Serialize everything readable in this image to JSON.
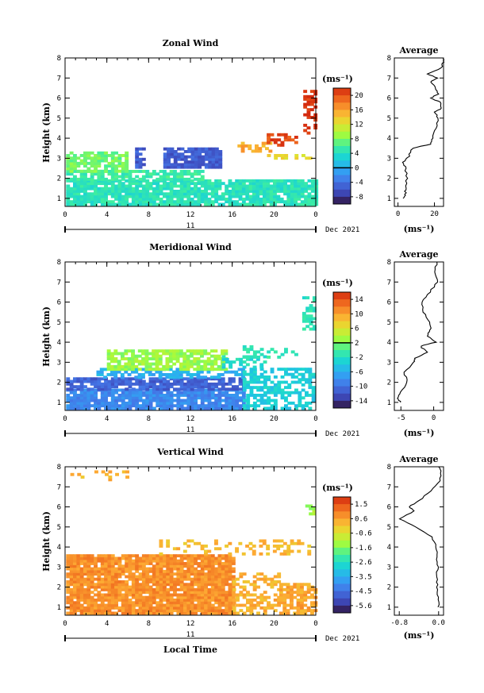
{
  "figure": {
    "date_label": "Dec 2021",
    "day_label": "11",
    "xlabel": "Local Time",
    "ylabel": "Height (km)",
    "unit_label": "(ms⁻¹)",
    "avg_title": "Average"
  },
  "chart_data": [
    {
      "type": "heatmap",
      "title": "Zonal Wind",
      "x_ticks": [
        "0",
        "4",
        "8",
        "12",
        "16",
        "20",
        "0"
      ],
      "y_ticks": [
        "1",
        "2",
        "3",
        "4",
        "5",
        "6",
        "7",
        "8"
      ],
      "xlim": [
        0,
        24
      ],
      "ylim": [
        0.6,
        8
      ],
      "colorbar": {
        "labels": [
          "20",
          "16",
          "12",
          "8",
          "4",
          "0",
          "-4",
          "-8"
        ],
        "vmin": -10,
        "vmax": 22,
        "contour_at": "0"
      },
      "field": {
        "regions": [
          {
            "x0": 0.1,
            "x1": 23.9,
            "y0": 0.65,
            "y1": 1.9,
            "value": 4.5,
            "density": 0.88
          },
          {
            "x0": 0.1,
            "x1": 13.0,
            "y0": 1.9,
            "y1": 2.3,
            "value": 5.5,
            "density": 0.7
          },
          {
            "x0": 0.1,
            "x1": 6.0,
            "y0": 2.3,
            "y1": 3.3,
            "value": 7.5,
            "density": 0.75
          },
          {
            "x0": 6.7,
            "x1": 7.4,
            "y0": 2.5,
            "y1": 3.5,
            "value": -5.5,
            "density": 0.85
          },
          {
            "x0": 9.4,
            "x1": 14.9,
            "y0": 2.5,
            "y1": 3.5,
            "value": -5.5,
            "density": 0.9
          },
          {
            "x0": 16.5,
            "x1": 19.5,
            "y0": 3.3,
            "y1": 3.7,
            "value": 15.5,
            "density": 0.6
          },
          {
            "x0": 19.0,
            "x1": 23.5,
            "y0": 2.95,
            "y1": 3.15,
            "value": 12.5,
            "density": 0.5
          },
          {
            "x0": 19.3,
            "x1": 22.0,
            "y0": 3.6,
            "y1": 4.2,
            "value": 20.5,
            "density": 0.5
          },
          {
            "x0": 22.8,
            "x1": 23.9,
            "y0": 4.2,
            "y1": 6.4,
            "value": 21.5,
            "density": 0.55
          }
        ]
      },
      "average": {
        "x_ticks": [
          "0",
          "20"
        ],
        "xlim": [
          -2,
          25
        ],
        "profile": [
          [
            1,
            3
          ],
          [
            1.2,
            4
          ],
          [
            1.5,
            4
          ],
          [
            2,
            5
          ],
          [
            2.5,
            4
          ],
          [
            2.8,
            3
          ],
          [
            3.1,
            6
          ],
          [
            3.5,
            8
          ],
          [
            3.7,
            18
          ],
          [
            4.0,
            19
          ],
          [
            4.5,
            21
          ],
          [
            5.0,
            22
          ],
          [
            5.3,
            20
          ],
          [
            5.5,
            24
          ],
          [
            5.8,
            23
          ],
          [
            6.0,
            18
          ],
          [
            6.2,
            22
          ],
          [
            6.5,
            21
          ],
          [
            6.8,
            18
          ],
          [
            7.0,
            22
          ],
          [
            7.2,
            16
          ],
          [
            7.5,
            24
          ],
          [
            7.8,
            25
          ],
          [
            8,
            25
          ]
        ]
      }
    },
    {
      "type": "heatmap",
      "title": "Meridional Wind",
      "x_ticks": [
        "0",
        "4",
        "8",
        "12",
        "16",
        "20",
        "0"
      ],
      "y_ticks": [
        "1",
        "2",
        "3",
        "4",
        "5",
        "6",
        "7",
        "8"
      ],
      "xlim": [
        0,
        24
      ],
      "ylim": [
        0.6,
        8
      ],
      "colorbar": {
        "labels": [
          "14",
          "10",
          "6",
          "2",
          "-2",
          "-6",
          "-10",
          "-14"
        ],
        "vmin": -16,
        "vmax": 16,
        "contour_at": "2"
      },
      "field": {
        "regions": [
          {
            "x0": 0.1,
            "x1": 17.0,
            "y0": 0.65,
            "y1": 1.6,
            "value": -8.5,
            "density": 0.9
          },
          {
            "x0": 0.1,
            "x1": 17.0,
            "y0": 1.6,
            "y1": 2.2,
            "value": -11,
            "density": 0.8
          },
          {
            "x0": 3.0,
            "x1": 17.0,
            "y0": 2.2,
            "y1": 2.6,
            "value": -6,
            "density": 0.6
          },
          {
            "x0": 17.0,
            "x1": 23.9,
            "y0": 0.65,
            "y1": 2.6,
            "value": -3.5,
            "density": 0.55
          },
          {
            "x0": 4.0,
            "x1": 15.5,
            "y0": 2.6,
            "y1": 3.6,
            "value": 3,
            "density": 0.75
          },
          {
            "x0": 15.0,
            "x1": 19.0,
            "y0": 2.7,
            "y1": 3.3,
            "value": -2.5,
            "density": 0.5
          },
          {
            "x0": 17.0,
            "x1": 22.0,
            "y0": 3.2,
            "y1": 3.8,
            "value": -1,
            "density": 0.4
          },
          {
            "x0": 22.7,
            "x1": 23.9,
            "y0": 4.6,
            "y1": 6.2,
            "value": -1.5,
            "density": 0.45
          }
        ]
      },
      "average": {
        "x_ticks": [
          "-5",
          "0"
        ],
        "xlim": [
          -6,
          1.5
        ],
        "profile": [
          [
            1,
            -5
          ],
          [
            1.2,
            -5.5
          ],
          [
            1.5,
            -5
          ],
          [
            2,
            -4
          ],
          [
            2.5,
            -4.5
          ],
          [
            3,
            -3
          ],
          [
            3.2,
            -2.8
          ],
          [
            3.5,
            -1
          ],
          [
            3.8,
            -2
          ],
          [
            4.0,
            0.3
          ],
          [
            4.3,
            -1
          ],
          [
            4.6,
            -0.5
          ],
          [
            5.0,
            -0.6
          ],
          [
            5.5,
            -1.5
          ],
          [
            6.0,
            -1.8
          ],
          [
            6.5,
            -0.6
          ],
          [
            7.0,
            0.6
          ],
          [
            7.5,
            0.2
          ],
          [
            8,
            0.5
          ]
        ]
      }
    },
    {
      "type": "heatmap",
      "title": "Vertical Wind",
      "x_ticks": [
        "0",
        "4",
        "8",
        "12",
        "16",
        "20",
        "0"
      ],
      "y_ticks": [
        "1",
        "2",
        "3",
        "4",
        "5",
        "6",
        "7",
        "8"
      ],
      "xlim": [
        0,
        24
      ],
      "ylim": [
        0.6,
        8
      ],
      "colorbar": {
        "labels": [
          "1.5",
          "0.6",
          "-0.6",
          "-1.6",
          "-2.6",
          "-3.5",
          "-4.5",
          "-5.6"
        ],
        "vmin": -6.5,
        "vmax": 2.3
      },
      "field": {
        "regions": [
          {
            "x0": 0.1,
            "x1": 16.0,
            "y0": 0.65,
            "y1": 3.6,
            "value": 0.9,
            "density": 0.9
          },
          {
            "x0": 16.0,
            "x1": 20.5,
            "y0": 0.65,
            "y1": 2.6,
            "value": 0.4,
            "density": 0.55
          },
          {
            "x0": 20.5,
            "x1": 23.9,
            "y0": 0.65,
            "y1": 2.2,
            "value": 0.6,
            "density": 0.7
          },
          {
            "x0": 9.0,
            "x1": 23.5,
            "y0": 3.6,
            "y1": 4.3,
            "value": 0.3,
            "density": 0.25
          },
          {
            "x0": 0.5,
            "x1": 6.0,
            "y0": 7.3,
            "y1": 7.8,
            "value": 0.4,
            "density": 0.35
          },
          {
            "x0": 23.0,
            "x1": 23.8,
            "y0": 5.6,
            "y1": 6.2,
            "value": -1.2,
            "density": 0.5
          }
        ]
      },
      "average": {
        "x_ticks": [
          "-0.8",
          "0.0"
        ],
        "xlim": [
          -0.9,
          0.1
        ],
        "profile": [
          [
            1,
            0
          ],
          [
            1.5,
            -0.02
          ],
          [
            2,
            -0.03
          ],
          [
            2.5,
            -0.03
          ],
          [
            3,
            -0.02
          ],
          [
            3.5,
            -0.04
          ],
          [
            4,
            -0.05
          ],
          [
            4.5,
            -0.15
          ],
          [
            5.0,
            -0.45
          ],
          [
            5.4,
            -0.8
          ],
          [
            5.8,
            -0.5
          ],
          [
            6.0,
            -0.6
          ],
          [
            6.3,
            -0.4
          ],
          [
            6.8,
            -0.15
          ],
          [
            7.3,
            0.02
          ],
          [
            7.8,
            0.05
          ],
          [
            8,
            0
          ]
        ]
      }
    }
  ]
}
